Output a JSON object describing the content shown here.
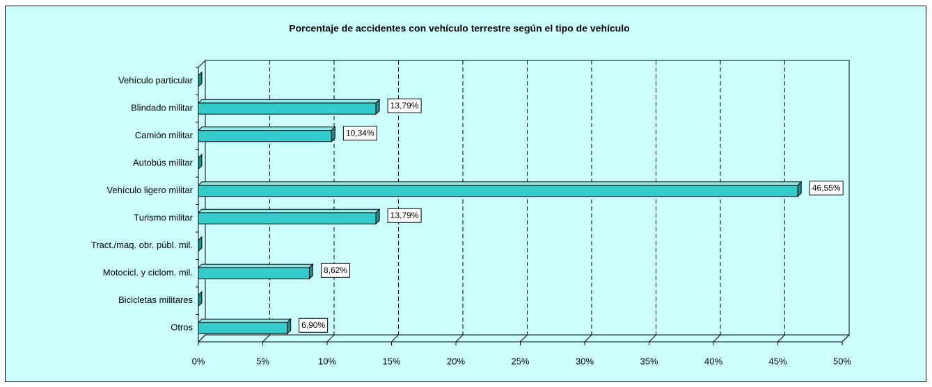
{
  "chart_data": {
    "type": "bar3d_horizontal",
    "title": "Porcentaje de accidentes con vehículo terrestre según el tipo de vehículo",
    "categories": [
      "Vehículo particular",
      "Blindado militar",
      "Camión militar",
      "Autobús militar",
      "Vehículo ligero militar",
      "Turismo militar",
      "Tract./maq. obr. públ. mil.",
      "Motocicl. y ciclom. mil.",
      "Bicicletas militares",
      "Otros"
    ],
    "values": [
      0,
      13.79,
      10.34,
      0,
      46.55,
      13.79,
      0,
      8.62,
      0,
      6.9
    ],
    "value_labels": [
      null,
      "13,79%",
      "10,34%",
      null,
      "46,55%",
      "13,79%",
      null,
      "8,62%",
      null,
      "6,90%"
    ],
    "color": "#33cccc",
    "xlim": [
      0,
      50
    ],
    "xticks": [
      {
        "value": 0,
        "label": "0%"
      },
      {
        "value": 5,
        "label": "5%"
      },
      {
        "value": 10,
        "label": "10%"
      },
      {
        "value": 15,
        "label": "15%"
      },
      {
        "value": 20,
        "label": "20%"
      },
      {
        "value": 25,
        "label": "25%"
      },
      {
        "value": 30,
        "label": "30%"
      },
      {
        "value": 35,
        "label": "35%"
      },
      {
        "value": 40,
        "label": "40%"
      },
      {
        "value": 45,
        "label": "45%"
      },
      {
        "value": 50,
        "label": "50%"
      }
    ],
    "grid": true
  }
}
